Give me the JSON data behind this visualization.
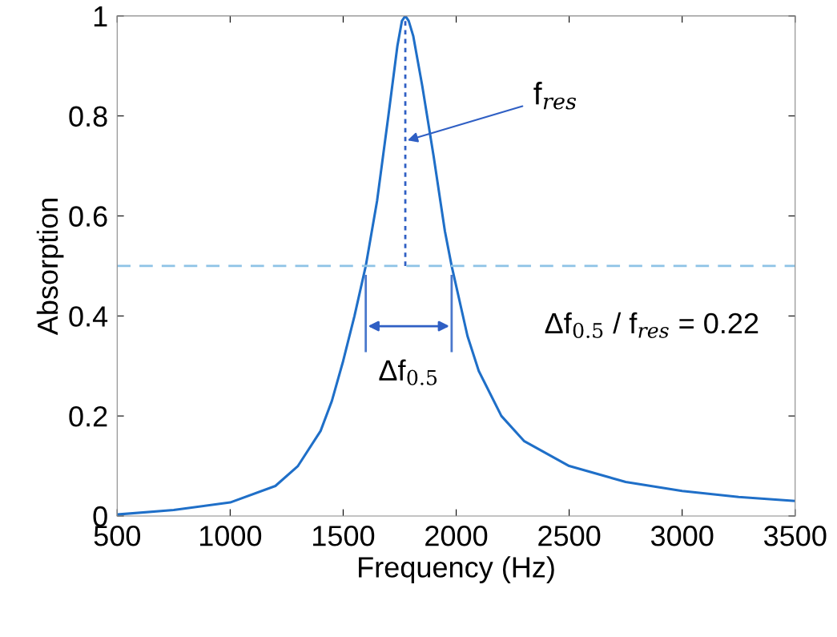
{
  "chart_data": {
    "type": "line",
    "xlabel": "Frequency (Hz)",
    "ylabel": "Absorption",
    "xlim": [
      500,
      3500
    ],
    "xticks": [
      500,
      1000,
      1500,
      2000,
      2500,
      3000,
      3500
    ],
    "ylim": [
      0,
      1
    ],
    "yticks": [
      0,
      0.2,
      0.4,
      0.6,
      0.8,
      1
    ],
    "series": [
      {
        "color": "#1f6fc8",
        "line_style": "solid",
        "x": [
          500,
          750,
          1000,
          1200,
          1300,
          1400,
          1450,
          1500,
          1550,
          1600,
          1650,
          1700,
          1740,
          1760,
          1775,
          1790,
          1810,
          1850,
          1900,
          1950,
          1980,
          2050,
          2100,
          2200,
          2300,
          2500,
          2750,
          3000,
          3250,
          3500
        ],
        "values": [
          0.003,
          0.012,
          0.027,
          0.06,
          0.1,
          0.17,
          0.23,
          0.31,
          0.4,
          0.5,
          0.63,
          0.8,
          0.94,
          0.99,
          1.0,
          0.99,
          0.96,
          0.86,
          0.72,
          0.57,
          0.5,
          0.36,
          0.29,
          0.2,
          0.15,
          0.1,
          0.068,
          0.05,
          0.038,
          0.03
        ]
      },
      {
        "color": "#2f5fc4",
        "line_style": "dotted",
        "x": [
          1775,
          1775
        ],
        "values": [
          0.5,
          1.0
        ]
      },
      {
        "color": "#4a78cc",
        "line_style": "solid",
        "x": [
          1600,
          1600,
          null,
          1980,
          1980
        ],
        "values": [
          0.33,
          0.48,
          null,
          0.33,
          0.48
        ]
      }
    ],
    "ref_lines": [
      {
        "axis": "y",
        "value": 0.5,
        "color": "#8ec3e6",
        "line_style": "dashed"
      }
    ],
    "annotations": [
      "f$_{res}$",
      "Δf$_{0.5}$",
      "Δf$_{0.5}$ / f$_{res}$ = 0.22"
    ]
  }
}
